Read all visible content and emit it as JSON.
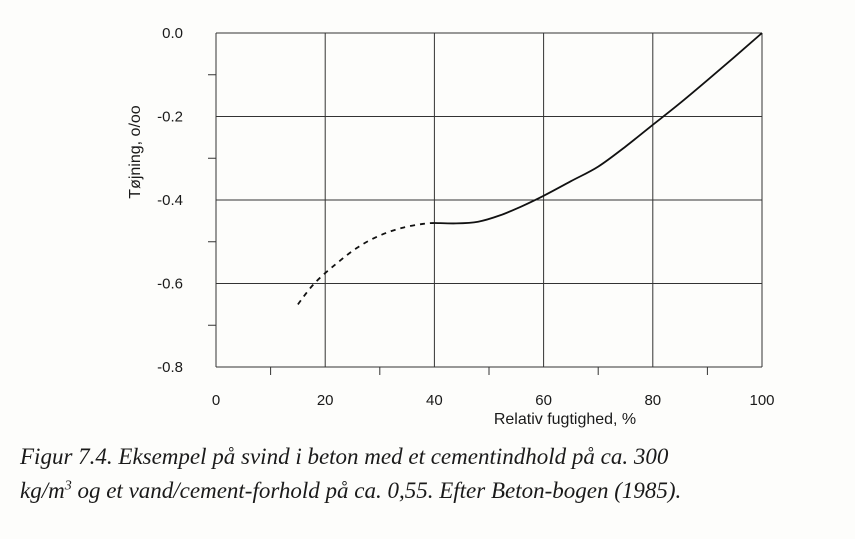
{
  "chart_data": {
    "type": "line",
    "xlabel": "Relativ fugtighed, %",
    "ylabel": "Tøjning, o/oo",
    "xlim": [
      0,
      100
    ],
    "ylim": [
      -0.8,
      0.0
    ],
    "x_ticks": [
      "0",
      "20",
      "40",
      "60",
      "80",
      "100"
    ],
    "y_ticks": [
      "0.0",
      "-0.2",
      "-0.4",
      "-0.6",
      "-0.8"
    ],
    "grid": true,
    "series": [
      {
        "style": "dashed",
        "x": [
          15,
          18,
          22,
          26,
          30,
          34,
          38,
          40
        ],
        "y": [
          -0.65,
          -0.6,
          -0.553,
          -0.513,
          -0.485,
          -0.467,
          -0.457,
          -0.455
        ]
      },
      {
        "style": "solid",
        "x": [
          40,
          44,
          48,
          52,
          56,
          60,
          65,
          70,
          75,
          80,
          85,
          90,
          95,
          100
        ],
        "y": [
          -0.455,
          -0.456,
          -0.452,
          -0.437,
          -0.415,
          -0.39,
          -0.355,
          -0.32,
          -0.272,
          -0.22,
          -0.168,
          -0.113,
          -0.057,
          0.0
        ]
      }
    ]
  },
  "caption": {
    "line1": "Figur 7.4. Eksempel på svind i beton med et cementindhold på ca. 300",
    "line2_pre": "kg/m",
    "line2_sup": "3",
    "line2_post": " og et vand/cement-forhold på ca. 0,55. Efter Beton-bogen (1985)."
  }
}
